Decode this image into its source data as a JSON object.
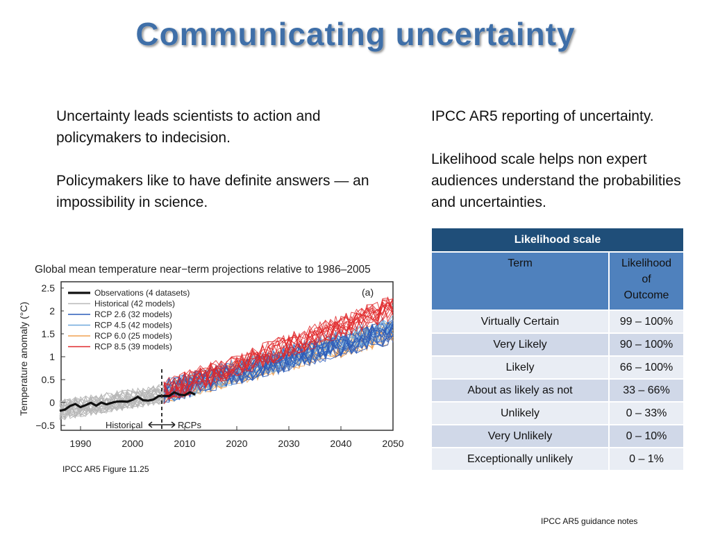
{
  "slide": {
    "title": "Communicating uncertainty"
  },
  "left_column": {
    "para1": "Uncertainty leads scientists to action and policymakers to indecision.",
    "para2": "Policymakers like to have definite answers — an impossibility in science."
  },
  "right_column": {
    "para1": "IPCC AR5 reporting of uncertainty.",
    "para2": "Likelihood scale helps non expert audiences understand the probabilities and uncertainties."
  },
  "figure": {
    "title": "Global mean temperature near−term projections relative to 1986–2005",
    "ylabel": "Temperature anomaly (°C)",
    "panel_label": "(a)",
    "y_ticks": [
      "2.5",
      "2",
      "1.5",
      "1",
      "0.5",
      "0",
      "−0.5"
    ],
    "x_ticks": [
      "1990",
      "2000",
      "2010",
      "2020",
      "2030",
      "2040",
      "2050"
    ],
    "legend": [
      {
        "label": "Observations (4 datasets)",
        "color": "#111111"
      },
      {
        "label": "Historical (42 models)",
        "color": "#b8b8b8"
      },
      {
        "label": "RCP 2.6 (32 models)",
        "color": "#2a5bb8"
      },
      {
        "label": "RCP 4.5 (42 models)",
        "color": "#6fa8dc"
      },
      {
        "label": "RCP 6.0 (25 models)",
        "color": "#f0a050"
      },
      {
        "label": "RCP 8.5 (39 models)",
        "color": "#e0282a"
      }
    ],
    "annotation_historical": "Historical",
    "annotation_rcps": "RCPs",
    "caption": "IPCC AR5 Figure 11.25"
  },
  "likelihood_table": {
    "title": "Likelihood scale",
    "col_term": "Term",
    "col_likelihood_line1": "Likelihood",
    "col_likelihood_line2": "of",
    "col_likelihood_line3": "Outcome",
    "rows": [
      {
        "term": "Virtually Certain",
        "range": "99 – 100%"
      },
      {
        "term": "Very Likely",
        "range": "90 – 100%"
      },
      {
        "term": "Likely",
        "range": "66 – 100%"
      },
      {
        "term": "About as likely as not",
        "range": "33 – 66%"
      },
      {
        "term": "Unlikely",
        "range": "0 – 33%"
      },
      {
        "term": "Very Unlikely",
        "range": "0 – 10%"
      },
      {
        "term": "Exceptionally unlikely",
        "range": "0 – 1%"
      }
    ]
  },
  "footer": {
    "notes": "IPCC AR5 guidance notes"
  }
}
